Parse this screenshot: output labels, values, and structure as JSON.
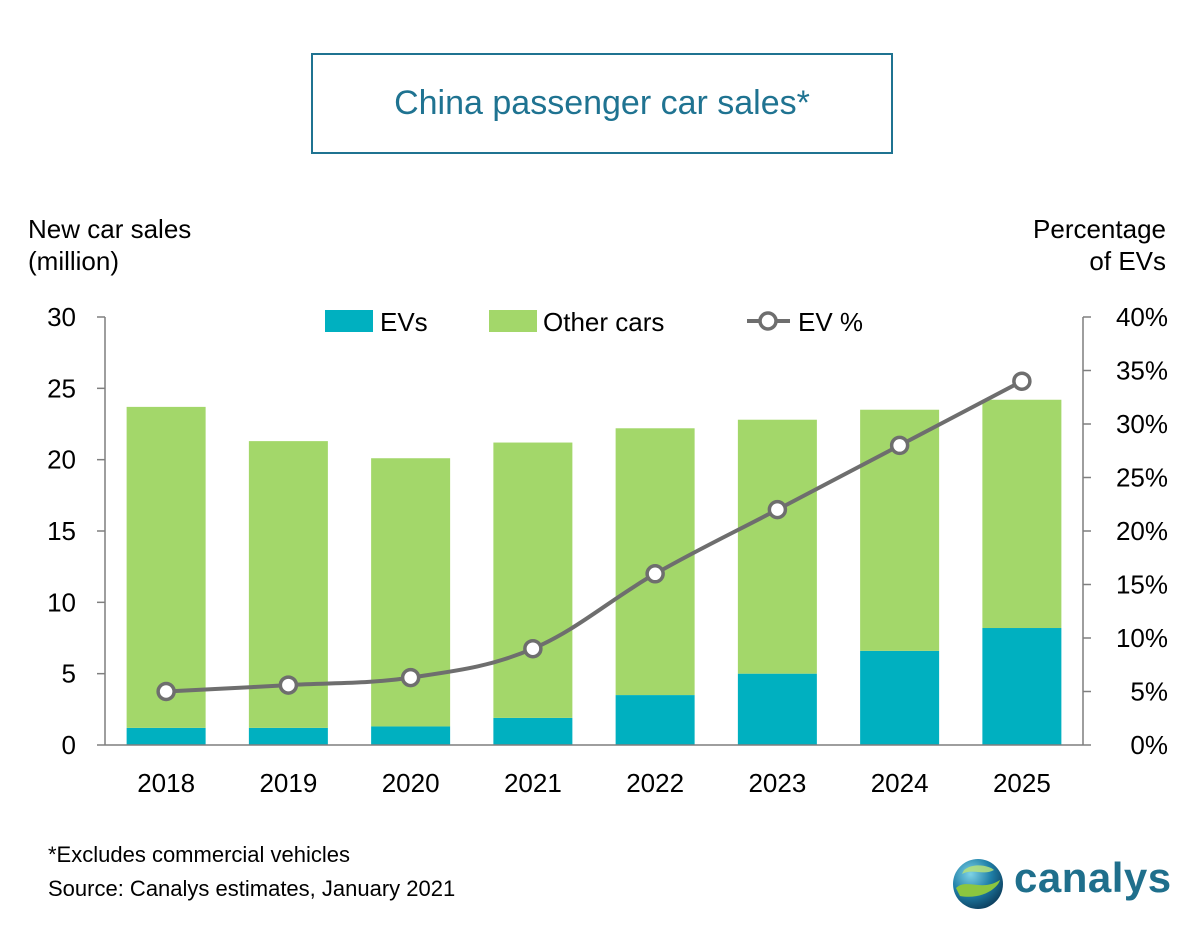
{
  "chart_data": {
    "type": "bar",
    "stacked": true,
    "title": "China passenger car sales*",
    "ylabel": "New car sales (million)",
    "ylabel_lines": [
      "New car sales",
      "(million)"
    ],
    "y2label": "Percentage of EVs",
    "y2label_lines": [
      "Percentage",
      "of EVs"
    ],
    "categories": [
      "2018",
      "2019",
      "2020",
      "2021",
      "2022",
      "2023",
      "2024",
      "2025"
    ],
    "ylim": [
      0,
      30
    ],
    "yticks": [
      0,
      5,
      10,
      15,
      20,
      25,
      30
    ],
    "ytick_labels": [
      "0",
      "5",
      "10",
      "15",
      "20",
      "25",
      "30"
    ],
    "y2lim": [
      0,
      40
    ],
    "y2ticks": [
      0,
      5,
      10,
      15,
      20,
      25,
      30,
      35,
      40
    ],
    "y2tick_labels": [
      "0%",
      "5%",
      "10%",
      "15%",
      "20%",
      "25%",
      "30%",
      "35%",
      "40%"
    ],
    "legend_position": "top",
    "grid": false,
    "series": [
      {
        "name": "EVs",
        "kind": "bar",
        "color": "#00b0c0",
        "values": [
          1.2,
          1.2,
          1.3,
          1.9,
          3.5,
          5.0,
          6.6,
          8.2
        ]
      },
      {
        "name": "Other cars",
        "kind": "bar",
        "color": "#a3d76a",
        "values": [
          22.5,
          20.1,
          18.8,
          19.3,
          18.7,
          17.8,
          16.9,
          16.0
        ]
      },
      {
        "name": "EV %",
        "kind": "line",
        "axis": "right",
        "color": "#6e6e6e",
        "values": [
          5.0,
          5.6,
          6.3,
          9.0,
          16.0,
          22.0,
          28.0,
          34.0
        ]
      }
    ]
  },
  "footnote": "*Excludes commercial vehicles",
  "source": "Source: Canalys estimates, January 2021",
  "logo": {
    "text": "canalys",
    "brand_color": "#1f6f8c"
  }
}
